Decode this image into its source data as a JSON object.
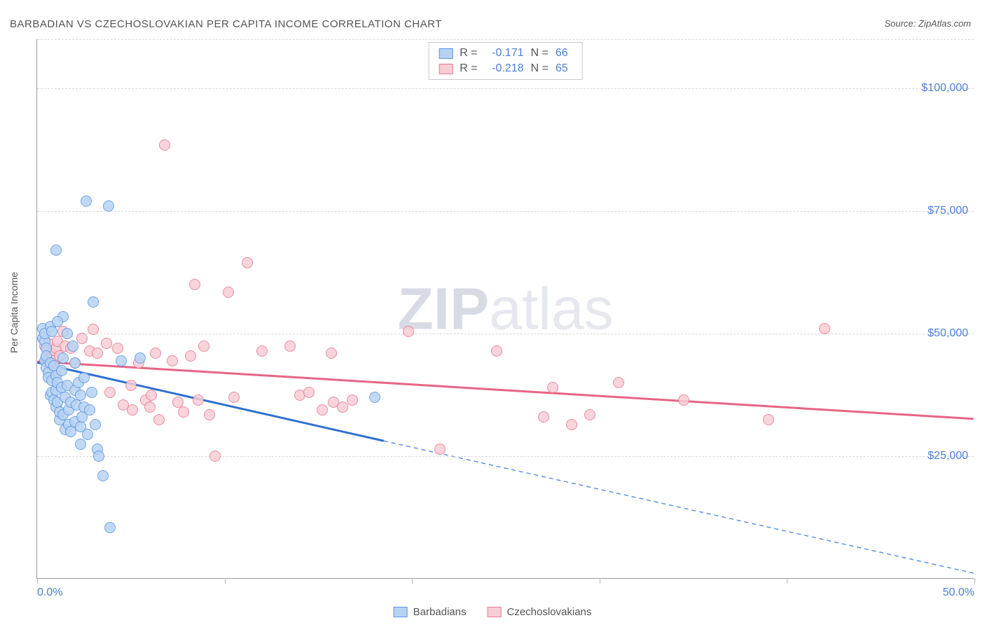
{
  "title": "BARBADIAN VS CZECHOSLOVAKIAN PER CAPITA INCOME CORRELATION CHART",
  "source_label": "Source: ZipAtlas.com",
  "watermark_a": "ZIP",
  "watermark_b": "atlas",
  "chart": {
    "type": "scatter",
    "ylabel": "Per Capita Income",
    "xlim": [
      0,
      50
    ],
    "ylim": [
      0,
      110000
    ],
    "xtick_positions": [
      0,
      10,
      20,
      30,
      40,
      50
    ],
    "xtick_labels": {
      "0": "0.0%",
      "50": "50.0%"
    },
    "ytick_positions": [
      25000,
      50000,
      75000,
      100000
    ],
    "ytick_labels": {
      "25000": "$25,000",
      "50000": "$50,000",
      "75000": "$75,000",
      "100000": "$100,000"
    },
    "grid_color": "#d6d6da",
    "axis_color": "#9a9aa0",
    "background_color": "#ffffff",
    "tick_label_color": "#4b7fd6",
    "label_color": "#555559",
    "label_fontsize": 14,
    "tick_fontsize": 16,
    "marker_radius": 8,
    "marker_border_width": 1.5,
    "series": [
      {
        "name": "Barbadians",
        "fill_color": "#b7d3f3",
        "border_color": "#5a94e0",
        "line_color": "#2f70d0",
        "line_width": 3,
        "dash_color": "#5a94e0",
        "r_value": "-0.171",
        "n_value": "66",
        "trend_start": {
          "x": 0,
          "y": 44000
        },
        "solid_end": {
          "x": 18.5,
          "y": 28000
        },
        "dash_end": {
          "x": 50,
          "y": 1000
        },
        "points": [
          [
            0.3,
            51000
          ],
          [
            0.3,
            49000
          ],
          [
            0.4,
            48500
          ],
          [
            0.4,
            44500
          ],
          [
            0.4,
            50000
          ],
          [
            0.5,
            47000
          ],
          [
            0.5,
            43000
          ],
          [
            0.5,
            45500
          ],
          [
            0.6,
            42000
          ],
          [
            0.6,
            41000
          ],
          [
            0.7,
            51500
          ],
          [
            0.7,
            37500
          ],
          [
            0.7,
            44000
          ],
          [
            0.8,
            38000
          ],
          [
            0.8,
            40500
          ],
          [
            0.8,
            50500
          ],
          [
            0.9,
            36500
          ],
          [
            0.9,
            43500
          ],
          [
            1.0,
            35000
          ],
          [
            1.0,
            38500
          ],
          [
            1.0,
            41500
          ],
          [
            1.1,
            40000
          ],
          [
            1.1,
            36000
          ],
          [
            1.2,
            32500
          ],
          [
            1.2,
            34000
          ],
          [
            1.3,
            39000
          ],
          [
            1.3,
            42500
          ],
          [
            1.4,
            33500
          ],
          [
            1.4,
            45000
          ],
          [
            1.5,
            30500
          ],
          [
            1.5,
            37000
          ],
          [
            1.6,
            39500
          ],
          [
            1.7,
            31500
          ],
          [
            1.7,
            34500
          ],
          [
            1.8,
            30000
          ],
          [
            1.8,
            36000
          ],
          [
            1.9,
            47500
          ],
          [
            2.0,
            32000
          ],
          [
            2.0,
            38500
          ],
          [
            2.1,
            35500
          ],
          [
            2.2,
            40000
          ],
          [
            2.3,
            31000
          ],
          [
            2.3,
            27500
          ],
          [
            2.4,
            33000
          ],
          [
            2.5,
            35000
          ],
          [
            2.5,
            41000
          ],
          [
            2.6,
            77000
          ],
          [
            2.7,
            29500
          ],
          [
            2.8,
            34500
          ],
          [
            2.9,
            38000
          ],
          [
            3.0,
            56500
          ],
          [
            3.1,
            31500
          ],
          [
            3.2,
            26500
          ],
          [
            3.3,
            25000
          ],
          [
            3.5,
            21000
          ],
          [
            3.8,
            76000
          ],
          [
            3.9,
            10500
          ],
          [
            4.5,
            44500
          ],
          [
            5.5,
            45000
          ],
          [
            1.0,
            67000
          ],
          [
            1.4,
            53500
          ],
          [
            1.1,
            52500
          ],
          [
            1.6,
            50000
          ],
          [
            2.0,
            44000
          ],
          [
            2.3,
            37500
          ],
          [
            18.0,
            37000
          ]
        ]
      },
      {
        "name": "Czechoslovakians",
        "fill_color": "#f8cdd7",
        "border_color": "#e57991",
        "line_color": "#e86486",
        "line_width": 3,
        "r_value": "-0.218",
        "n_value": "65",
        "trend_start": {
          "x": 0,
          "y": 44200
        },
        "solid_end": {
          "x": 50,
          "y": 32500
        },
        "points": [
          [
            0.4,
            47500
          ],
          [
            0.5,
            45000
          ],
          [
            0.6,
            48000
          ],
          [
            0.6,
            44000
          ],
          [
            0.7,
            43000
          ],
          [
            0.7,
            46500
          ],
          [
            0.8,
            46000
          ],
          [
            0.9,
            44500
          ],
          [
            1.0,
            47000
          ],
          [
            1.0,
            42500
          ],
          [
            1.1,
            48500
          ],
          [
            1.2,
            45500
          ],
          [
            1.4,
            50500
          ],
          [
            1.5,
            47500
          ],
          [
            1.8,
            47000
          ],
          [
            2.0,
            44000
          ],
          [
            2.4,
            49000
          ],
          [
            2.8,
            46500
          ],
          [
            3.0,
            50800
          ],
          [
            3.2,
            46000
          ],
          [
            3.7,
            48000
          ],
          [
            3.9,
            38000
          ],
          [
            4.3,
            47000
          ],
          [
            4.6,
            35500
          ],
          [
            5.0,
            39500
          ],
          [
            5.1,
            34500
          ],
          [
            5.4,
            44000
          ],
          [
            5.8,
            36500
          ],
          [
            6.0,
            35000
          ],
          [
            6.1,
            37500
          ],
          [
            6.3,
            46000
          ],
          [
            6.5,
            32500
          ],
          [
            6.8,
            88500
          ],
          [
            7.2,
            44500
          ],
          [
            7.5,
            36000
          ],
          [
            7.8,
            34000
          ],
          [
            8.2,
            45500
          ],
          [
            8.4,
            60000
          ],
          [
            8.6,
            36500
          ],
          [
            8.9,
            47500
          ],
          [
            9.2,
            33500
          ],
          [
            9.5,
            25000
          ],
          [
            10.2,
            58500
          ],
          [
            10.5,
            37000
          ],
          [
            11.2,
            64500
          ],
          [
            12.0,
            46500
          ],
          [
            13.5,
            47500
          ],
          [
            14.0,
            37500
          ],
          [
            14.5,
            38000
          ],
          [
            15.2,
            34500
          ],
          [
            15.7,
            46000
          ],
          [
            15.8,
            36000
          ],
          [
            16.3,
            35000
          ],
          [
            16.8,
            36500
          ],
          [
            19.8,
            50500
          ],
          [
            21.5,
            26500
          ],
          [
            24.5,
            46500
          ],
          [
            27.0,
            33000
          ],
          [
            28.5,
            31500
          ],
          [
            29.5,
            33500
          ],
          [
            31.0,
            40000
          ],
          [
            34.5,
            36500
          ],
          [
            39.0,
            32500
          ],
          [
            42.0,
            51000
          ],
          [
            27.5,
            39000
          ]
        ]
      }
    ]
  },
  "stats_box": {
    "r_label": "R =",
    "n_label": "N ="
  },
  "legend_label_a": "Barbadians",
  "legend_label_b": "Czechoslovakians"
}
